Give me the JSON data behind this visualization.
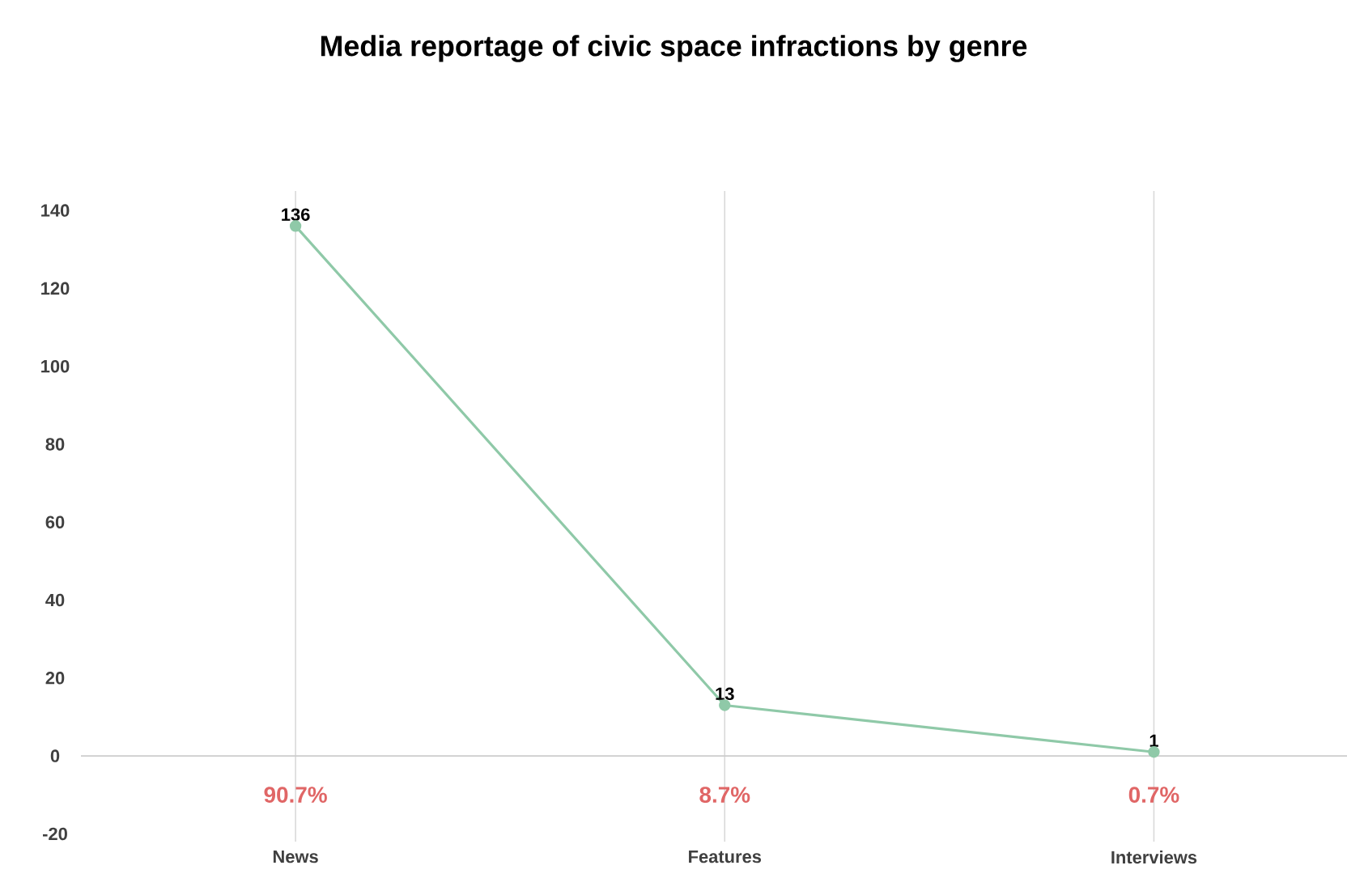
{
  "chart_data": {
    "type": "line",
    "title": "Media reportage of civic space infractions by genre",
    "categories": [
      "News",
      "Features",
      "Interviews"
    ],
    "values": [
      136,
      13,
      1
    ],
    "color": "#8fc9a8",
    "marker": "circle",
    "data_labels": true,
    "ylim": [
      -22,
      145
    ],
    "yticks": [
      -20,
      0,
      20,
      40,
      60,
      80,
      100,
      120,
      140
    ],
    "grid": "x",
    "ref_lines": [
      {
        "axis": "y",
        "value": 0,
        "color": "#cccccc"
      }
    ],
    "annotations": [
      "90.7%",
      "8.7%",
      "0.7%"
    ]
  }
}
